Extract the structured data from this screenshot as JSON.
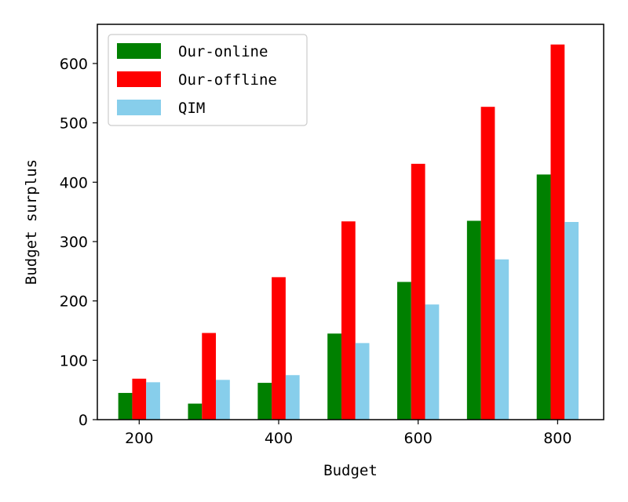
{
  "chart_data": {
    "type": "bar",
    "categories": [
      "200",
      "300",
      "400",
      "500",
      "600",
      "700",
      "800"
    ],
    "x": [
      200,
      300,
      400,
      500,
      600,
      700,
      800
    ],
    "series": [
      {
        "name": "Our-online",
        "color": "#008000",
        "values": [
          45,
          27,
          62,
          145,
          232,
          335,
          413
        ]
      },
      {
        "name": "Our-offline",
        "color": "#ff0000",
        "values": [
          69,
          146,
          240,
          334,
          431,
          527,
          632
        ]
      },
      {
        "name": "QIM",
        "color": "#87ceeb",
        "values": [
          63,
          67,
          75,
          129,
          194,
          270,
          333
        ]
      }
    ],
    "xlabel": "Budget",
    "ylabel": "Budget surplus",
    "xlim": [
      140,
      866
    ],
    "ylim": [
      0,
      666
    ],
    "xticks": [
      "200",
      "400",
      "600",
      "800"
    ],
    "yticks": [
      "0",
      "100",
      "200",
      "300",
      "400",
      "500",
      "600"
    ],
    "legend_position": "top-left",
    "grid": false
  }
}
